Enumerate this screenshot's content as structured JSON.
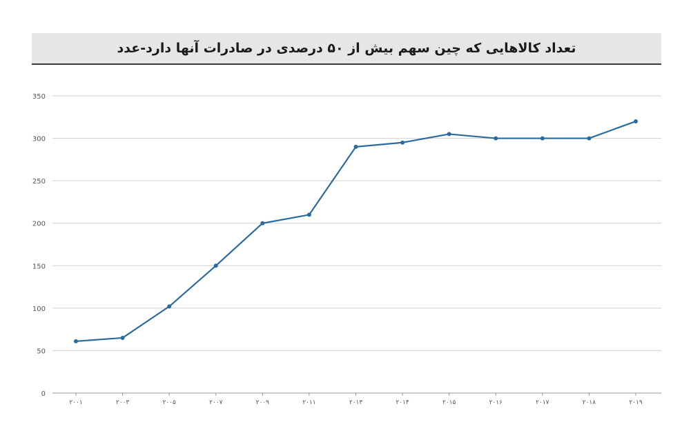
{
  "chart_data": {
    "type": "line",
    "title": "تعداد کالاهایی که چین سهم بیش از ۵۰ درصدی در صادرات آنها دارد-عدد",
    "xlabel": "",
    "ylabel": "",
    "x": [
      "۲۰۰۱",
      "۲۰۰۳",
      "۲۰۰۵",
      "۲۰۰۷",
      "۲۰۰۹",
      "۲۰۱۱",
      "۲۰۱۳",
      "۲۰۱۴",
      "۲۰۱۵",
      "۲۰۱۶",
      "۲۰۱۷",
      "۲۰۱۸",
      "۲۰۱۹"
    ],
    "series": [
      {
        "values": [
          61,
          65,
          102,
          150,
          200,
          210,
          290,
          295,
          305,
          300,
          300,
          300,
          320
        ]
      }
    ],
    "ylim": [
      0,
      350
    ],
    "yticks": [
      0,
      50,
      100,
      150,
      200,
      250,
      300,
      350
    ],
    "grid": true,
    "line_color": "#2b6a9e",
    "grid_color": "#cfcfcf"
  }
}
